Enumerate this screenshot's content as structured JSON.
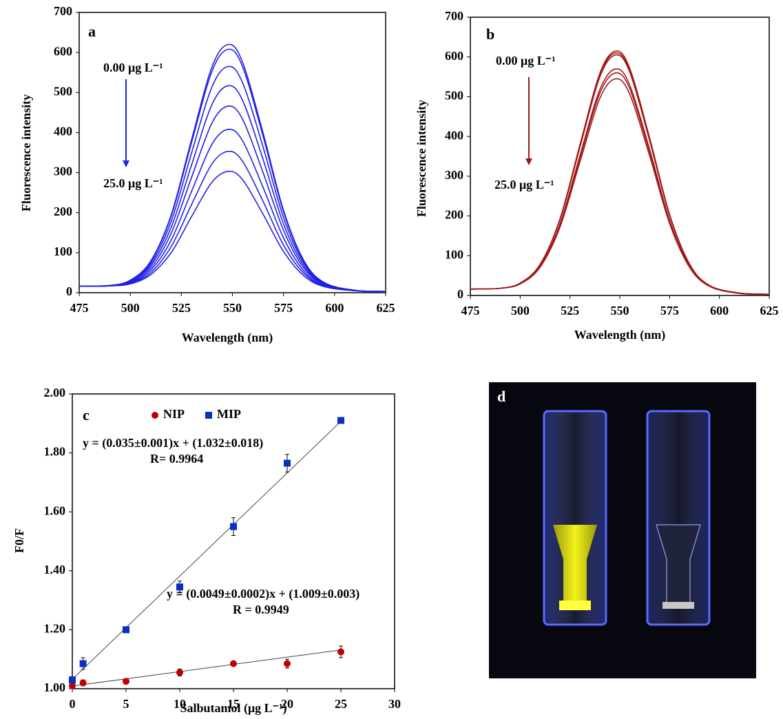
{
  "chart_data": [
    {
      "type": "line",
      "panel_label": "a",
      "y_label": "Fluorescence intensity",
      "x_label": "Wavelength (nm)",
      "annotations": [
        "0.00 μg L⁻¹",
        "25.0 μg L⁻¹"
      ],
      "xlim": [
        475,
        625
      ],
      "xticks": [
        475,
        500,
        525,
        550,
        575,
        600,
        625
      ],
      "ylim": [
        0,
        700
      ],
      "yticks": [
        0,
        100,
        200,
        300,
        400,
        500,
        600,
        700
      ],
      "x": [
        475,
        490,
        500,
        510,
        520,
        530,
        540,
        548,
        555,
        565,
        575,
        585,
        595,
        610,
        625
      ],
      "series": [
        {
          "color": "#1f1fe6",
          "values": [
            16,
            18,
            31,
            79,
            194,
            382,
            564,
            620,
            575,
            399,
            206,
            80,
            25,
            6,
            3
          ]
        },
        {
          "color": "#1f1fe6",
          "values": [
            16,
            18,
            31,
            78,
            191,
            375,
            553,
            608,
            564,
            391,
            202,
            78,
            25,
            6,
            3
          ]
        },
        {
          "color": "#1f1fe6",
          "values": [
            16,
            18,
            30,
            73,
            178,
            349,
            514,
            565,
            524,
            364,
            188,
            73,
            23,
            6,
            3
          ]
        },
        {
          "color": "#1f1fe6",
          "values": [
            16,
            18,
            29,
            68,
            163,
            319,
            470,
            517,
            480,
            333,
            172,
            67,
            22,
            5,
            3
          ]
        },
        {
          "color": "#1f1fe6",
          "values": [
            16,
            18,
            27,
            62,
            148,
            288,
            424,
            466,
            433,
            300,
            156,
            61,
            20,
            5,
            3
          ]
        },
        {
          "color": "#1f1fe6",
          "values": [
            16,
            17,
            25,
            56,
            131,
            253,
            371,
            408,
            379,
            263,
            137,
            54,
            18,
            5,
            3
          ]
        },
        {
          "color": "#1f1fe6",
          "values": [
            16,
            17,
            24,
            50,
            115,
            220,
            322,
            353,
            328,
            228,
            119,
            48,
            16,
            5,
            3
          ]
        },
        {
          "color": "#1f1fe6",
          "values": [
            16,
            17,
            22,
            45,
            100,
            190,
            276,
            303,
            282,
            196,
            103,
            42,
            15,
            5,
            3
          ]
        }
      ]
    },
    {
      "type": "line",
      "panel_label": "b",
      "y_label": "Fluorescence intensity",
      "x_label": "Wavelength (nm)",
      "annotations": [
        "0.00 μg L⁻¹",
        "25.0 μg L⁻¹"
      ],
      "xlim": [
        475,
        625
      ],
      "xticks": [
        475,
        500,
        525,
        550,
        575,
        600,
        625
      ],
      "ylim": [
        0,
        700
      ],
      "yticks": [
        0,
        100,
        200,
        300,
        400,
        500,
        600,
        700
      ],
      "x": [
        475,
        490,
        500,
        510,
        520,
        530,
        540,
        548,
        555,
        565,
        575,
        585,
        595,
        610,
        625
      ],
      "series": [
        {
          "color": "#a01818",
          "values": [
            16,
            18,
            31,
            78,
            193,
            379,
            559,
            615,
            571,
            396,
            204,
            79,
            25,
            6,
            3
          ]
        },
        {
          "color": "#a01818",
          "values": [
            16,
            18,
            31,
            78,
            191,
            376,
            555,
            610,
            566,
            393,
            202,
            79,
            25,
            6,
            3
          ]
        },
        {
          "color": "#a01818",
          "values": [
            16,
            18,
            31,
            77,
            190,
            373,
            550,
            605,
            562,
            389,
            201,
            78,
            25,
            6,
            3
          ]
        },
        {
          "color": "#a01818",
          "values": [
            16,
            18,
            30,
            73,
            179,
            352,
            518,
            570,
            529,
            367,
            189,
            74,
            24,
            6,
            3
          ]
        },
        {
          "color": "#a01818",
          "values": [
            16,
            18,
            30,
            72,
            176,
            346,
            509,
            560,
            520,
            361,
            186,
            73,
            23,
            6,
            3
          ]
        },
        {
          "color": "#a01818",
          "values": [
            16,
            18,
            29,
            71,
            172,
            336,
            496,
            545,
            506,
            351,
            181,
            71,
            23,
            5,
            3
          ]
        }
      ]
    },
    {
      "type": "scatter",
      "panel_label": "c",
      "y_label": "F0/F",
      "x_label": "Salbutamol (μg L⁻¹)",
      "annotations": [
        "y = (0.035±0.001)x + (1.032±0.018)",
        "R= 0.9964",
        "y = (0.0049±0.0002)x + (1.009±0.003)",
        "R = 0.9949"
      ],
      "xlim": [
        0,
        30
      ],
      "xticks": [
        0,
        5,
        10,
        15,
        20,
        25,
        30
      ],
      "ylim": [
        1,
        2
      ],
      "yticks": [
        {
          "value": 1,
          "label": "1.00"
        },
        {
          "value": 1.2,
          "label": "1.20"
        },
        {
          "value": 1.4,
          "label": "1.40"
        },
        {
          "value": 1.6,
          "label": "1.60"
        },
        {
          "value": 1.8,
          "label": "1.80"
        },
        {
          "value": 2,
          "label": "2.00"
        }
      ],
      "x": [
        0,
        1,
        5,
        10,
        15,
        20,
        25
      ],
      "series": [
        {
          "name": "NIP",
          "color": "#c00000",
          "marker": "circle",
          "values": [
            1.01,
            1.02,
            1.025,
            1.055,
            1.085,
            1.085,
            1.125
          ],
          "errors": [
            0.005,
            0.01,
            0.008,
            0.012,
            0.008,
            0.015,
            0.02
          ],
          "trendline": {
            "slope": 0.0049,
            "intercept": 1.009
          }
        },
        {
          "name": "MIP",
          "color": "#0b2fc0",
          "marker": "square",
          "values": [
            1.03,
            1.085,
            1.2,
            1.345,
            1.55,
            1.765,
            1.91
          ],
          "errors": [
            0.005,
            0.02,
            0.01,
            0.02,
            0.03,
            0.03,
            0.01
          ],
          "trendline": {
            "slope": 0.035,
            "intercept": 1.032
          }
        }
      ]
    }
  ],
  "photo": {
    "label": "d"
  }
}
